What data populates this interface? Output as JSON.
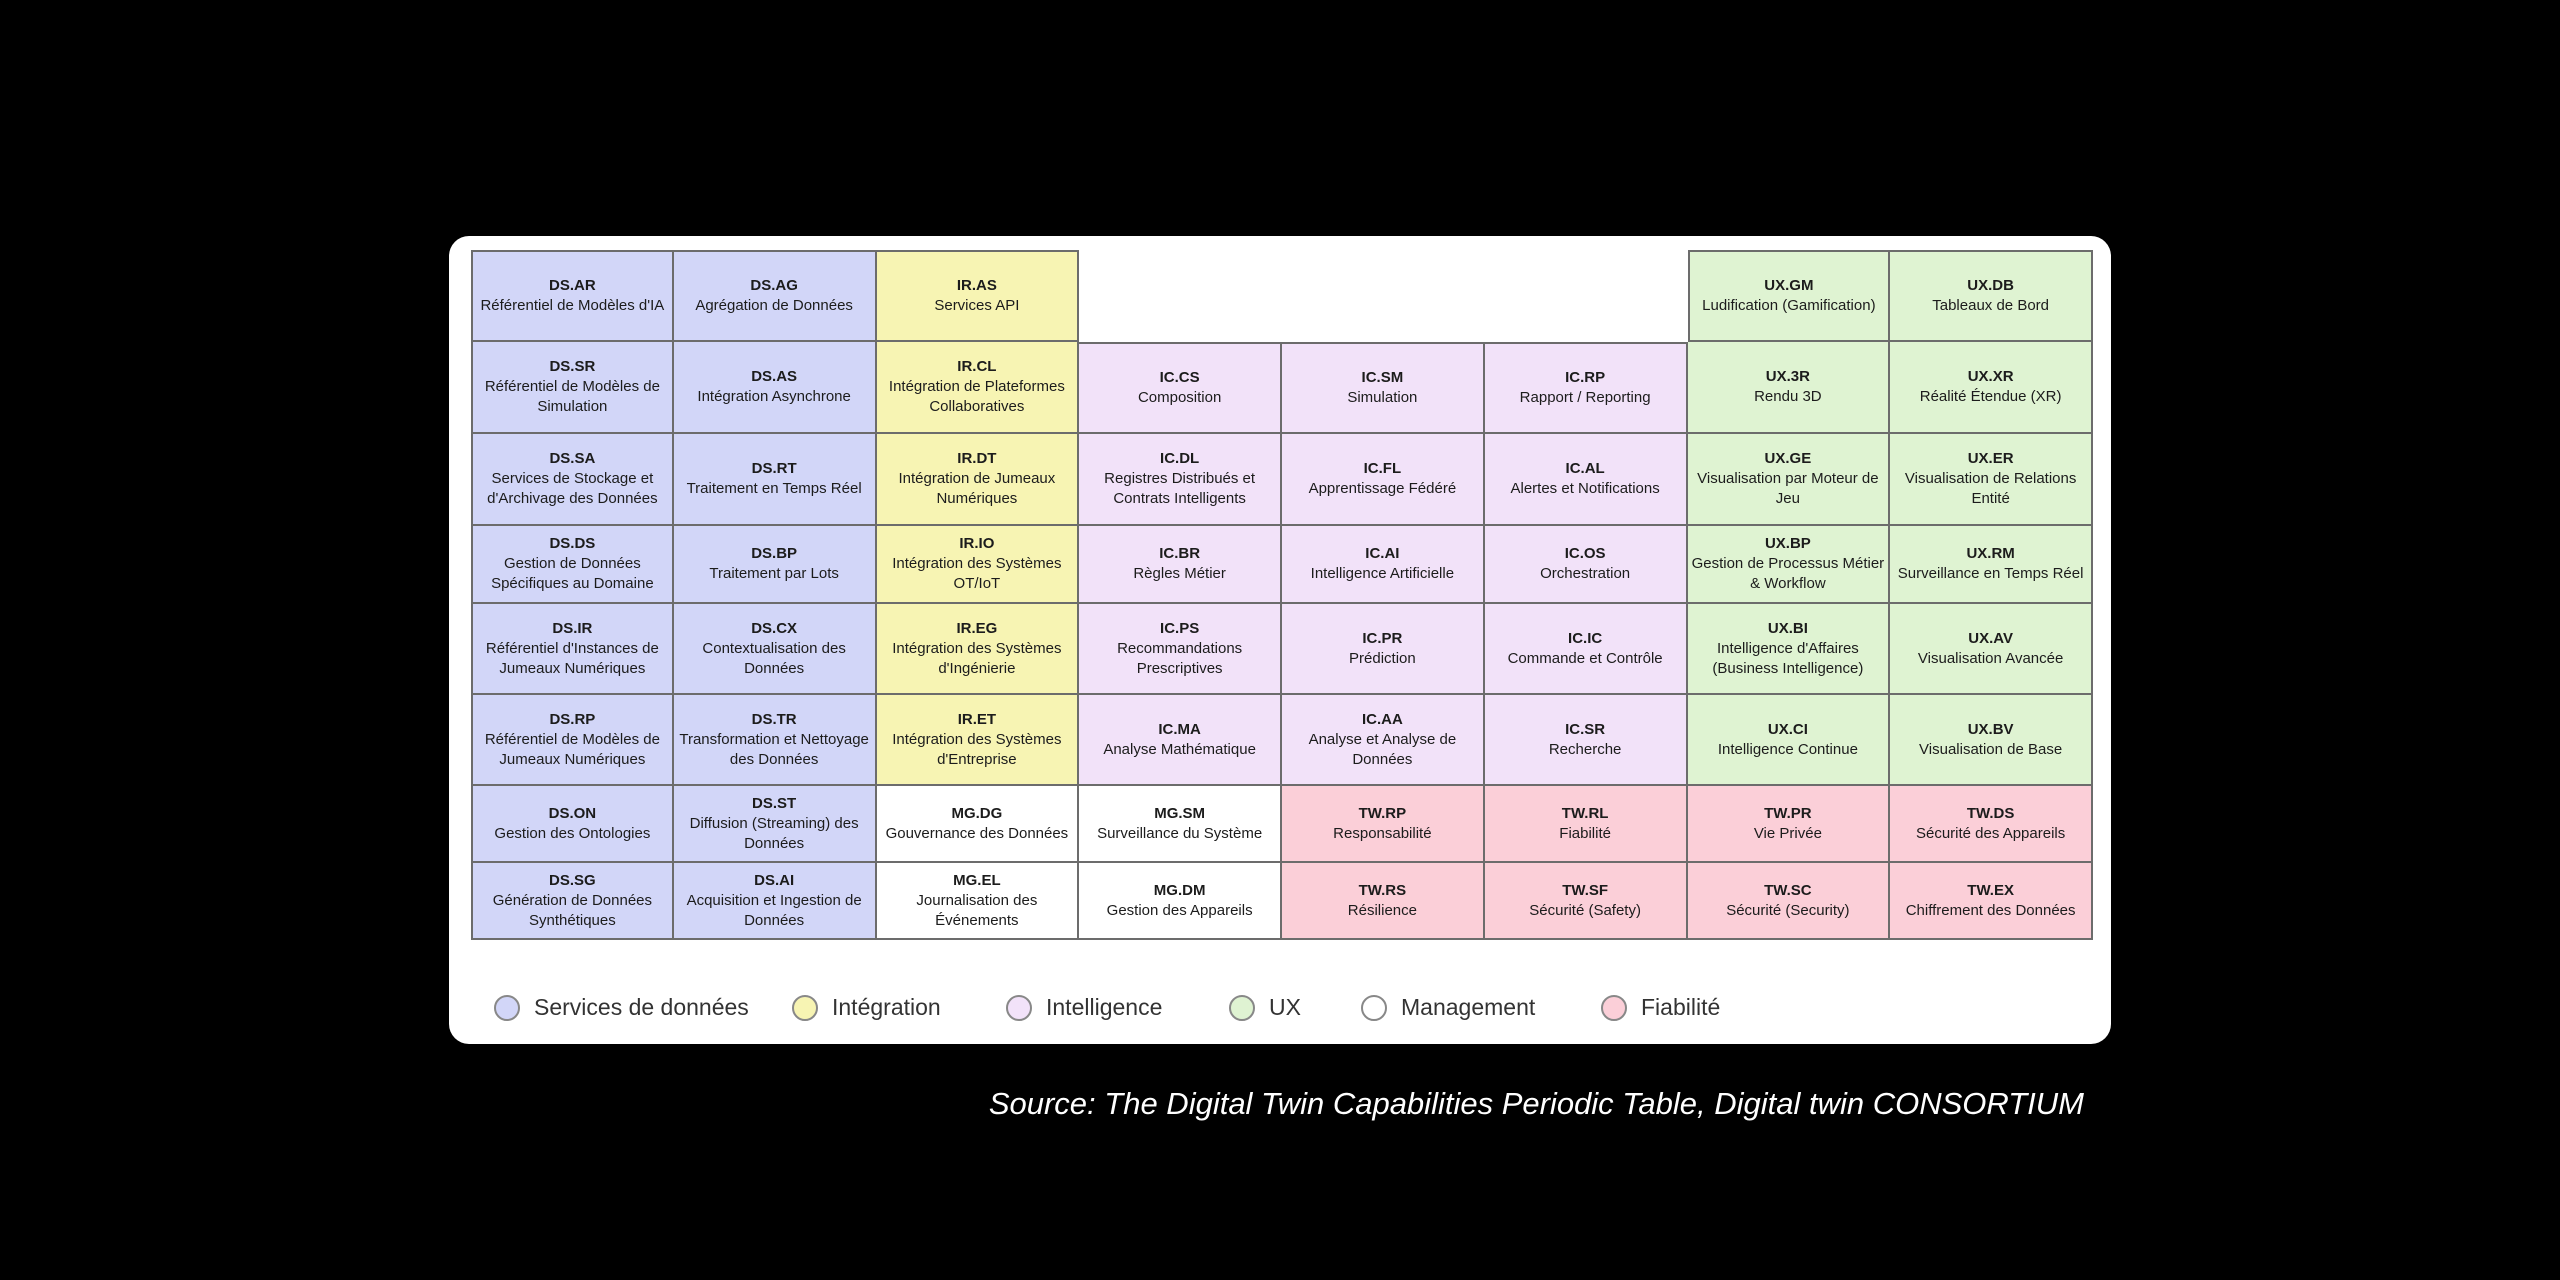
{
  "cells": [
    {
      "code": "DS.AR",
      "name": "Référentiel de Modèles d'IA",
      "cat": "ds",
      "row": 1,
      "col": 1
    },
    {
      "code": "DS.AG",
      "name": "Agrégation de Données",
      "cat": "ds",
      "row": 1,
      "col": 2
    },
    {
      "code": "IR.AS",
      "name": "Services API",
      "cat": "ir",
      "row": 1,
      "col": 3
    },
    {
      "code": "UX.GM",
      "name": "Ludification (Gamification)",
      "cat": "ux",
      "row": 1,
      "col": 7
    },
    {
      "code": "UX.DB",
      "name": "Tableaux de Bord",
      "cat": "ux",
      "row": 1,
      "col": 8
    },
    {
      "code": "DS.SR",
      "name": "Référentiel de Modèles de Simulation",
      "cat": "ds",
      "row": 2,
      "col": 1
    },
    {
      "code": "DS.AS",
      "name": "Intégration Asynchrone",
      "cat": "ds",
      "row": 2,
      "col": 2
    },
    {
      "code": "IR.CL",
      "name": "Intégration de Plateformes Collaboratives",
      "cat": "ir",
      "row": 2,
      "col": 3
    },
    {
      "code": "IC.CS",
      "name": "Composition",
      "cat": "ic",
      "row": 2,
      "col": 4
    },
    {
      "code": "IC.SM",
      "name": "Simulation",
      "cat": "ic",
      "row": 2,
      "col": 5
    },
    {
      "code": "IC.RP",
      "name": "Rapport / Reporting",
      "cat": "ic",
      "row": 2,
      "col": 6
    },
    {
      "code": "UX.3R",
      "name": "Rendu 3D",
      "cat": "ux",
      "row": 2,
      "col": 7
    },
    {
      "code": "UX.XR",
      "name": "Réalité Étendue (XR)",
      "cat": "ux",
      "row": 2,
      "col": 8
    },
    {
      "code": "DS.SA",
      "name": "Services de Stockage et d'Archivage des Données",
      "cat": "ds",
      "row": 3,
      "col": 1
    },
    {
      "code": "DS.RT",
      "name": "Traitement en Temps Réel",
      "cat": "ds",
      "row": 3,
      "col": 2
    },
    {
      "code": "IR.DT",
      "name": "Intégration de Jumeaux Numériques",
      "cat": "ir",
      "row": 3,
      "col": 3
    },
    {
      "code": "IC.DL",
      "name": "Registres Distribués et Contrats Intelligents",
      "cat": "ic",
      "row": 3,
      "col": 4
    },
    {
      "code": "IC.FL",
      "name": "Apprentissage Fédéré",
      "cat": "ic",
      "row": 3,
      "col": 5
    },
    {
      "code": "IC.AL",
      "name": "Alertes et Notifications",
      "cat": "ic",
      "row": 3,
      "col": 6
    },
    {
      "code": "UX.GE",
      "name": "Visualisation par Moteur de Jeu",
      "cat": "ux",
      "row": 3,
      "col": 7
    },
    {
      "code": "UX.ER",
      "name": "Visualisation de Relations Entité",
      "cat": "ux",
      "row": 3,
      "col": 8
    },
    {
      "code": "DS.DS",
      "name": "Gestion de Données Spécifiques au Domaine",
      "cat": "ds",
      "row": 4,
      "col": 1
    },
    {
      "code": "DS.BP",
      "name": "Traitement par Lots",
      "cat": "ds",
      "row": 4,
      "col": 2
    },
    {
      "code": "IR.IO",
      "name": "Intégration des Systèmes OT/IoT",
      "cat": "ir",
      "row": 4,
      "col": 3
    },
    {
      "code": "IC.BR",
      "name": "Règles Métier",
      "cat": "ic",
      "row": 4,
      "col": 4
    },
    {
      "code": "IC.AI",
      "name": "Intelligence Artificielle",
      "cat": "ic",
      "row": 4,
      "col": 5
    },
    {
      "code": "IC.OS",
      "name": "Orchestration",
      "cat": "ic",
      "row": 4,
      "col": 6
    },
    {
      "code": "UX.BP",
      "name": "Gestion de Processus Métier & Workflow",
      "cat": "ux",
      "row": 4,
      "col": 7
    },
    {
      "code": "UX.RM",
      "name": "Surveillance en Temps Réel",
      "cat": "ux",
      "row": 4,
      "col": 8
    },
    {
      "code": "DS.IR",
      "name": "Référentiel d'Instances de Jumeaux Numériques",
      "cat": "ds",
      "row": 5,
      "col": 1
    },
    {
      "code": "DS.CX",
      "name": "Contextualisation des Données",
      "cat": "ds",
      "row": 5,
      "col": 2
    },
    {
      "code": "IR.EG",
      "name": "Intégration des Systèmes d'Ingénierie",
      "cat": "ir",
      "row": 5,
      "col": 3
    },
    {
      "code": "IC.PS",
      "name": "Recommandations Prescriptives",
      "cat": "ic",
      "row": 5,
      "col": 4
    },
    {
      "code": "IC.PR",
      "name": "Prédiction",
      "cat": "ic",
      "row": 5,
      "col": 5
    },
    {
      "code": "IC.IC",
      "name": "Commande et Contrôle",
      "cat": "ic",
      "row": 5,
      "col": 6
    },
    {
      "code": "UX.BI",
      "name": "Intelligence d'Affaires (Business Intelligence)",
      "cat": "ux",
      "row": 5,
      "col": 7
    },
    {
      "code": "UX.AV",
      "name": "Visualisation Avancée",
      "cat": "ux",
      "row": 5,
      "col": 8
    },
    {
      "code": "DS.RP",
      "name": "Référentiel de Modèles de Jumeaux Numériques",
      "cat": "ds",
      "row": 6,
      "col": 1
    },
    {
      "code": "DS.TR",
      "name": "Transformation et Nettoyage des Données",
      "cat": "ds",
      "row": 6,
      "col": 2
    },
    {
      "code": "IR.ET",
      "name": "Intégration des Systèmes d'Entreprise",
      "cat": "ir",
      "row": 6,
      "col": 3
    },
    {
      "code": "IC.MA",
      "name": "Analyse Mathématique",
      "cat": "ic",
      "row": 6,
      "col": 4
    },
    {
      "code": "IC.AA",
      "name": "Analyse et Analyse de Données",
      "cat": "ic",
      "row": 6,
      "col": 5
    },
    {
      "code": "IC.SR",
      "name": "Recherche",
      "cat": "ic",
      "row": 6,
      "col": 6
    },
    {
      "code": "UX.CI",
      "name": "Intelligence Continue",
      "cat": "ux",
      "row": 6,
      "col": 7
    },
    {
      "code": "UX.BV",
      "name": "Visualisation de Base",
      "cat": "ux",
      "row": 6,
      "col": 8
    },
    {
      "code": "DS.ON",
      "name": "Gestion des Ontologies",
      "cat": "ds",
      "row": 7,
      "col": 1
    },
    {
      "code": "DS.ST",
      "name": "Diffusion (Streaming) des Données",
      "cat": "ds",
      "row": 7,
      "col": 2
    },
    {
      "code": "MG.DG",
      "name": "Gouvernance des Données",
      "cat": "mg",
      "row": 7,
      "col": 3
    },
    {
      "code": "MG.SM",
      "name": "Surveillance du Système",
      "cat": "mg",
      "row": 7,
      "col": 4
    },
    {
      "code": "TW.RP",
      "name": "Responsabilité",
      "cat": "tw",
      "row": 7,
      "col": 5
    },
    {
      "code": "TW.RL",
      "name": "Fiabilité",
      "cat": "tw",
      "row": 7,
      "col": 6
    },
    {
      "code": "TW.PR",
      "name": "Vie Privée",
      "cat": "tw",
      "row": 7,
      "col": 7
    },
    {
      "code": "TW.DS",
      "name": "Sécurité des Appareils",
      "cat": "tw",
      "row": 7,
      "col": 8
    },
    {
      "code": "DS.SG",
      "name": "Génération de Données Synthétiques",
      "cat": "ds",
      "row": 8,
      "col": 1
    },
    {
      "code": "DS.AI",
      "name": "Acquisition et Ingestion de Données",
      "cat": "ds",
      "row": 8,
      "col": 2
    },
    {
      "code": "MG.EL",
      "name": "Journalisation des Événements",
      "cat": "mg",
      "row": 8,
      "col": 3
    },
    {
      "code": "MG.DM",
      "name": "Gestion des Appareils",
      "cat": "mg",
      "row": 8,
      "col": 4
    },
    {
      "code": "TW.RS",
      "name": "Résilience",
      "cat": "tw",
      "row": 8,
      "col": 5
    },
    {
      "code": "TW.SF",
      "name": "Sécurité (Safety)",
      "cat": "tw",
      "row": 8,
      "col": 6
    },
    {
      "code": "TW.SC",
      "name": "Sécurité (Security)",
      "cat": "tw",
      "row": 8,
      "col": 7
    },
    {
      "code": "TW.EX",
      "name": "Chiffrement des Données",
      "cat": "tw",
      "row": 8,
      "col": 8
    }
  ],
  "legend": [
    {
      "label": "Services de données",
      "cat": "ds"
    },
    {
      "label": "Intégration",
      "cat": "ir"
    },
    {
      "label": "Intelligence",
      "cat": "ic"
    },
    {
      "label": "UX",
      "cat": "ux"
    },
    {
      "label": "Management",
      "cat": "mg"
    },
    {
      "label": "Fiabilité",
      "cat": "tw"
    }
  ],
  "category_colors": {
    "ds": "#d2d6f8",
    "ir": "#f7f4b3",
    "ic": "#f2e2f9",
    "ux": "#dff3d2",
    "mg": "#ffffff",
    "tw": "#fbcfd8"
  },
  "source": "Source: The Digital Twin Capabilities Periodic Table, Digital twin CONSORTIUM"
}
